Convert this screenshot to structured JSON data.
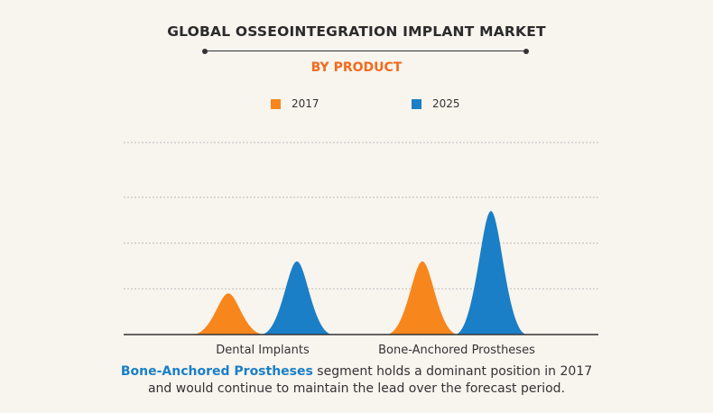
{
  "header": {
    "title": "GLOBAL OSSEOINTEGRATION IMPLANT MARKET",
    "subtitle": "BY PRODUCT"
  },
  "caption": {
    "highlight": "Bone-Anchored Prostheses",
    "line1_rest": " segment holds a dominant position in 2017",
    "line2": "and would continue to maintain the lead over the forecast period."
  },
  "colors": {
    "series_2017": "#f7861d",
    "series_2025": "#1a7fc6",
    "subtitle": "#f26b1d",
    "highlight": "#1a7fc6"
  },
  "chart_data": {
    "type": "area",
    "categories": [
      "Dental Implants",
      "Bone-Anchored Prostheses"
    ],
    "series": [
      {
        "name": "2017",
        "values": [
          0.9,
          1.6
        ]
      },
      {
        "name": "2025",
        "values": [
          1.6,
          2.7
        ]
      }
    ],
    "ylim": [
      0,
      4.2
    ],
    "grid": true,
    "legend": "top"
  }
}
